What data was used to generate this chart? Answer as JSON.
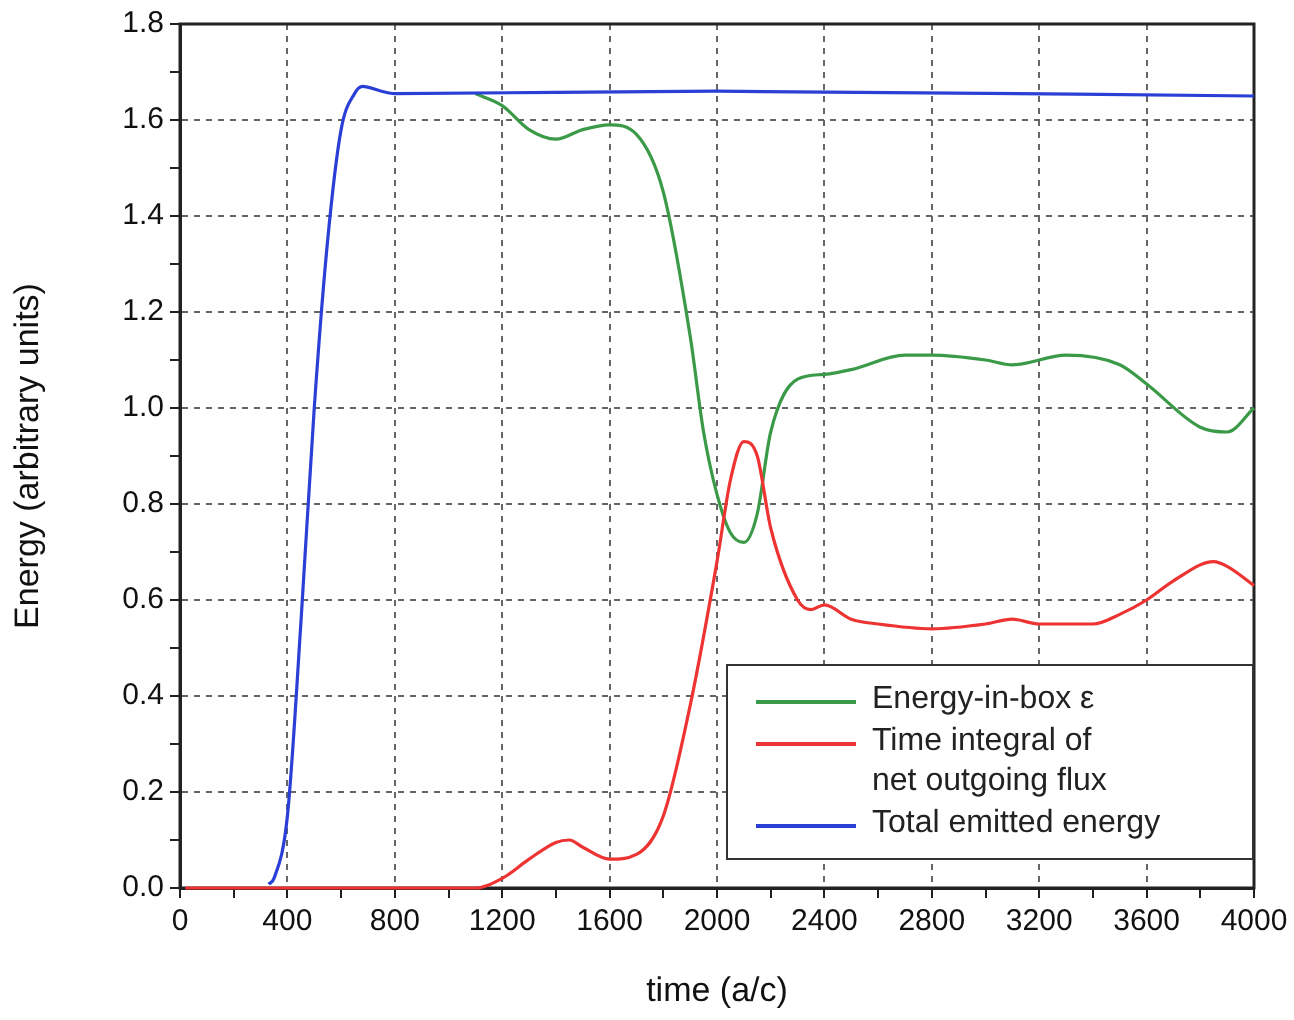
{
  "chart_data": {
    "type": "line",
    "xlabel": "time (a/c)",
    "ylabel": "Energy (arbitrary units)",
    "xlim": [
      0,
      4000
    ],
    "xticks": [
      0,
      {
        "value": 200,
        "label": null
      },
      400,
      {
        "value": 600,
        "label": null
      },
      800,
      {
        "value": 1000,
        "label": null
      },
      1200,
      {
        "value": 1400,
        "label": null
      },
      1600,
      {
        "value": 1800,
        "label": null
      },
      2000,
      {
        "value": 2200,
        "label": null
      },
      2400,
      {
        "value": 2600,
        "label": null
      },
      2800,
      {
        "value": 3000,
        "label": null
      },
      3200,
      {
        "value": 3400,
        "label": null
      },
      3600,
      {
        "value": 3800,
        "label": null
      },
      4000
    ],
    "ylim": [
      0,
      1.8
    ],
    "yticks": [
      "0.0",
      {
        "value": 0.1,
        "label": null
      },
      {
        "value": 0.2,
        "label": "0.2"
      },
      {
        "value": 0.3,
        "label": null
      },
      {
        "value": 0.4,
        "label": "0.4"
      },
      {
        "value": 0.5,
        "label": null
      },
      {
        "value": 0.6,
        "label": "0.6"
      },
      {
        "value": 0.7,
        "label": null
      },
      {
        "value": 0.8,
        "label": "0.8"
      },
      {
        "value": 0.9,
        "label": null
      },
      {
        "value": 1.0,
        "label": "1.0"
      },
      {
        "value": 1.1,
        "label": null
      },
      {
        "value": 1.2,
        "label": "1.2"
      },
      {
        "value": 1.3,
        "label": null
      },
      {
        "value": 1.4,
        "label": "1.4"
      },
      {
        "value": 1.5,
        "label": null
      },
      {
        "value": 1.6,
        "label": "1.6"
      },
      {
        "value": 1.7,
        "label": null
      },
      {
        "value": 1.8,
        "label": "1.8"
      }
    ],
    "grid": true,
    "legend": "bottom right",
    "marker": "none",
    "line_style": "solid",
    "series": [
      {
        "name": "Energy-in-box ε",
        "color": "#3a9a48",
        "x": [
          1100,
          1200,
          1300,
          1400,
          1500,
          1600,
          1700,
          1800,
          1900,
          1950,
          2000,
          2050,
          2100,
          2150,
          2200,
          2300,
          2400,
          2500,
          2700,
          2800,
          3000,
          3100,
          3300,
          3500,
          3600,
          3800,
          3900,
          4000
        ],
        "values": [
          1.655,
          1.63,
          1.58,
          1.56,
          1.58,
          1.59,
          1.57,
          1.45,
          1.15,
          0.95,
          0.82,
          0.74,
          0.72,
          0.78,
          0.95,
          1.06,
          1.07,
          1.08,
          1.11,
          1.11,
          1.1,
          1.09,
          1.11,
          1.09,
          1.05,
          0.96,
          0.95,
          1.0
        ]
      },
      {
        "name": "Time integral of\nnet outgoing flux",
        "color": "#ee3333",
        "x": [
          20,
          1100,
          1200,
          1300,
          1400,
          1450,
          1500,
          1600,
          1700,
          1800,
          1900,
          2000,
          2050,
          2100,
          2150,
          2200,
          2300,
          2350,
          2400,
          2500,
          2600,
          2800,
          3000,
          3100,
          3200,
          3400,
          3500,
          3600,
          3700,
          3850,
          3900,
          4000
        ],
        "values": [
          0,
          0,
          0.02,
          0.06,
          0.095,
          0.1,
          0.085,
          0.06,
          0.07,
          0.15,
          0.38,
          0.68,
          0.85,
          0.93,
          0.9,
          0.75,
          0.6,
          0.58,
          0.59,
          0.56,
          0.55,
          0.54,
          0.55,
          0.56,
          0.55,
          0.55,
          0.57,
          0.6,
          0.64,
          0.68,
          0.67,
          0.63
        ]
      },
      {
        "name": "Total emitted energy",
        "color": "#2a3fd6",
        "x": [
          330,
          350,
          400,
          450,
          500,
          550,
          600,
          650,
          680,
          750,
          800,
          2000,
          4000
        ],
        "values": [
          0.008,
          0.02,
          0.15,
          0.55,
          1.0,
          1.35,
          1.58,
          1.655,
          1.67,
          1.66,
          1.655,
          1.66,
          1.65
        ]
      }
    ]
  }
}
